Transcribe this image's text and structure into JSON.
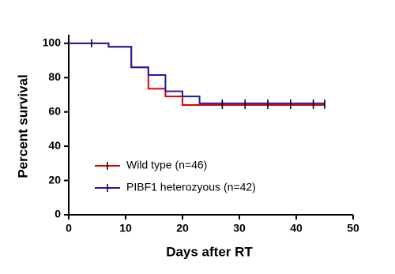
{
  "chart_data": {
    "type": "step",
    "xlabel": "Days after RT",
    "ylabel": "Percent survival",
    "xlim": [
      0,
      50
    ],
    "xticks": [
      0,
      10,
      20,
      30,
      40,
      50
    ],
    "ylim": [
      0,
      105
    ],
    "yticks": [
      0,
      20,
      40,
      60,
      80,
      100
    ],
    "legend": "lower left",
    "series": [
      {
        "name": "Wild type (n=46)",
        "color": "#e00000",
        "x": [
          0,
          7,
          11,
          14,
          17,
          20,
          45
        ],
        "values": [
          100,
          98,
          86,
          73.5,
          69,
          64,
          64
        ],
        "censored": [
          4,
          27,
          31,
          35,
          39,
          43,
          45
        ]
      },
      {
        "name": "PIBF1 heterozyous (n=42)",
        "color": "#1c1ca8",
        "x": [
          0,
          7,
          11,
          14,
          17,
          20,
          23,
          45
        ],
        "values": [
          100,
          98,
          86,
          81.5,
          72,
          69,
          65,
          65
        ],
        "censored": [
          4,
          27,
          31,
          35,
          39,
          43,
          45
        ]
      }
    ]
  }
}
